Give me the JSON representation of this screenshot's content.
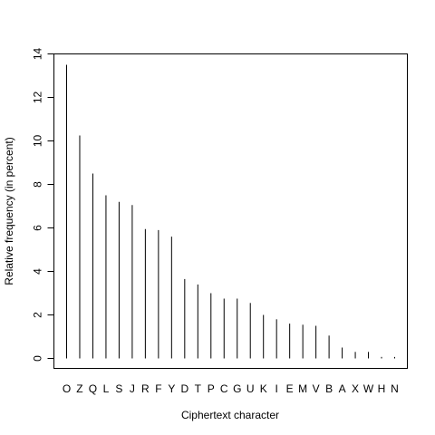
{
  "chart_data": {
    "type": "bar",
    "style": "vertical-lines",
    "xlabel": "Ciphertext character",
    "ylabel": "Relative frequency (in percent)",
    "ylim": [
      0,
      14
    ],
    "yticks": [
      0,
      2,
      4,
      6,
      8,
      10,
      12,
      14
    ],
    "grid": false,
    "categories": [
      "O",
      "Z",
      "Q",
      "L",
      "S",
      "J",
      "R",
      "F",
      "Y",
      "D",
      "T",
      "P",
      "C",
      "G",
      "U",
      "K",
      "I",
      "E",
      "M",
      "V",
      "B",
      "A",
      "X",
      "W",
      "H",
      "N"
    ],
    "values": [
      13.5,
      10.25,
      8.5,
      7.5,
      7.2,
      7.05,
      5.95,
      5.9,
      5.6,
      3.65,
      3.4,
      3.0,
      2.75,
      2.75,
      2.55,
      2.0,
      1.8,
      1.6,
      1.55,
      1.5,
      1.05,
      0.5,
      0.3,
      0.3,
      0.07,
      0.07
    ],
    "colors": {
      "bar": "#000000",
      "axis": "#000000"
    }
  }
}
